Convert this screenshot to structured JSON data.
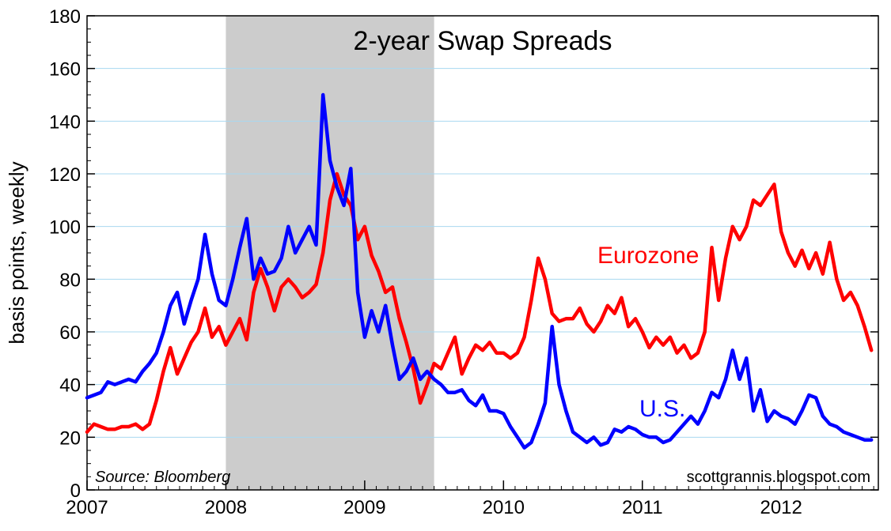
{
  "chart_data": {
    "type": "line",
    "title": "2-year Swap Spreads",
    "ylabel": "basis points, weekly",
    "ylim": [
      0,
      180
    ],
    "yticks": [
      0,
      20,
      40,
      60,
      80,
      100,
      120,
      140,
      160,
      180
    ],
    "xlim": [
      2007.0,
      2012.7
    ],
    "xticks": [
      2007,
      2008,
      2009,
      2010,
      2011,
      2012
    ],
    "xtick_labels": [
      "2007",
      "2008",
      "2009",
      "2010",
      "2011",
      "2012"
    ],
    "grid": true,
    "source": "Source: Bloomberg",
    "credit": "scottgrannis.blogspot.com",
    "shaded_region": {
      "x_start": 2008.0,
      "x_end": 2009.5,
      "color": "#cccccc"
    },
    "series": [
      {
        "name": "Eurozone",
        "color": "#ff0000",
        "x": [
          2007.0,
          2007.05,
          2007.1,
          2007.15,
          2007.2,
          2007.25,
          2007.3,
          2007.35,
          2007.4,
          2007.45,
          2007.5,
          2007.55,
          2007.6,
          2007.65,
          2007.7,
          2007.75,
          2007.8,
          2007.85,
          2007.9,
          2007.95,
          2008.0,
          2008.05,
          2008.1,
          2008.15,
          2008.2,
          2008.25,
          2008.3,
          2008.35,
          2008.4,
          2008.45,
          2008.5,
          2008.55,
          2008.6,
          2008.65,
          2008.7,
          2008.75,
          2008.8,
          2008.85,
          2008.9,
          2008.95,
          2009.0,
          2009.05,
          2009.1,
          2009.15,
          2009.2,
          2009.25,
          2009.3,
          2009.35,
          2009.4,
          2009.45,
          2009.5,
          2009.55,
          2009.6,
          2009.65,
          2009.7,
          2009.75,
          2009.8,
          2009.85,
          2009.9,
          2009.95,
          2010.0,
          2010.05,
          2010.1,
          2010.15,
          2010.2,
          2010.25,
          2010.3,
          2010.35,
          2010.4,
          2010.45,
          2010.5,
          2010.55,
          2010.6,
          2010.65,
          2010.7,
          2010.75,
          2010.8,
          2010.85,
          2010.9,
          2010.95,
          2011.0,
          2011.05,
          2011.1,
          2011.15,
          2011.2,
          2011.25,
          2011.3,
          2011.35,
          2011.4,
          2011.45,
          2011.5,
          2011.55,
          2011.6,
          2011.65,
          2011.7,
          2011.75,
          2011.8,
          2011.85,
          2011.9,
          2011.95,
          2012.0,
          2012.05,
          2012.1,
          2012.15,
          2012.2,
          2012.25,
          2012.3,
          2012.35,
          2012.4,
          2012.45,
          2012.5,
          2012.55,
          2012.6,
          2012.65
        ],
        "values": [
          22,
          25,
          24,
          23,
          23,
          24,
          24,
          25,
          23,
          25,
          34,
          45,
          54,
          44,
          50,
          56,
          60,
          69,
          58,
          62,
          55,
          60,
          65,
          57,
          75,
          84,
          77,
          68,
          77,
          80,
          77,
          73,
          75,
          78,
          90,
          110,
          120,
          112,
          108,
          95,
          100,
          89,
          83,
          75,
          77,
          65,
          56,
          46,
          33,
          40,
          48,
          46,
          52,
          58,
          44,
          50,
          55,
          53,
          56,
          52,
          52,
          50,
          52,
          58,
          72,
          88,
          80,
          67,
          64,
          65,
          65,
          69,
          63,
          60,
          64,
          70,
          67,
          73,
          62,
          65,
          60,
          54,
          58,
          55,
          58,
          52,
          55,
          50,
          52,
          60,
          92,
          72,
          88,
          100,
          95,
          100,
          110,
          108,
          112,
          116,
          98,
          90,
          85,
          91,
          84,
          90,
          82,
          94,
          80,
          72,
          75,
          70,
          62,
          53
        ]
      },
      {
        "name": "U.S.",
        "color": "#0000ff",
        "x": [
          2007.0,
          2007.05,
          2007.1,
          2007.15,
          2007.2,
          2007.25,
          2007.3,
          2007.35,
          2007.4,
          2007.45,
          2007.5,
          2007.55,
          2007.6,
          2007.65,
          2007.7,
          2007.75,
          2007.8,
          2007.85,
          2007.9,
          2007.95,
          2008.0,
          2008.05,
          2008.1,
          2008.15,
          2008.2,
          2008.25,
          2008.3,
          2008.35,
          2008.4,
          2008.45,
          2008.5,
          2008.55,
          2008.6,
          2008.65,
          2008.7,
          2008.75,
          2008.8,
          2008.85,
          2008.9,
          2008.95,
          2009.0,
          2009.05,
          2009.1,
          2009.15,
          2009.2,
          2009.25,
          2009.3,
          2009.35,
          2009.4,
          2009.45,
          2009.5,
          2009.55,
          2009.6,
          2009.65,
          2009.7,
          2009.75,
          2009.8,
          2009.85,
          2009.9,
          2009.95,
          2010.0,
          2010.05,
          2010.1,
          2010.15,
          2010.2,
          2010.25,
          2010.3,
          2010.35,
          2010.4,
          2010.45,
          2010.5,
          2010.55,
          2010.6,
          2010.65,
          2010.7,
          2010.75,
          2010.8,
          2010.85,
          2010.9,
          2010.95,
          2011.0,
          2011.05,
          2011.1,
          2011.15,
          2011.2,
          2011.25,
          2011.3,
          2011.35,
          2011.4,
          2011.45,
          2011.5,
          2011.55,
          2011.6,
          2011.65,
          2011.7,
          2011.75,
          2011.8,
          2011.85,
          2011.9,
          2011.95,
          2012.0,
          2012.05,
          2012.1,
          2012.15,
          2012.2,
          2012.25,
          2012.3,
          2012.35,
          2012.4,
          2012.45,
          2012.5,
          2012.55,
          2012.6,
          2012.65
        ],
        "values": [
          35,
          36,
          37,
          41,
          40,
          41,
          42,
          41,
          45,
          48,
          52,
          60,
          70,
          75,
          63,
          72,
          80,
          97,
          82,
          72,
          70,
          80,
          92,
          103,
          80,
          88,
          82,
          83,
          88,
          100,
          90,
          95,
          100,
          93,
          150,
          125,
          115,
          108,
          122,
          75,
          58,
          68,
          60,
          70,
          55,
          42,
          45,
          50,
          42,
          45,
          42,
          40,
          37,
          37,
          38,
          34,
          32,
          36,
          30,
          30,
          29,
          24,
          20,
          16,
          18,
          25,
          33,
          62,
          40,
          30,
          22,
          20,
          18,
          20,
          17,
          18,
          23,
          22,
          24,
          23,
          21,
          20,
          20,
          18,
          19,
          22,
          25,
          28,
          25,
          30,
          37,
          35,
          42,
          53,
          42,
          50,
          30,
          38,
          26,
          30,
          28,
          27,
          25,
          30,
          36,
          35,
          28,
          25,
          24,
          22,
          21,
          20,
          19,
          19
        ]
      }
    ]
  }
}
